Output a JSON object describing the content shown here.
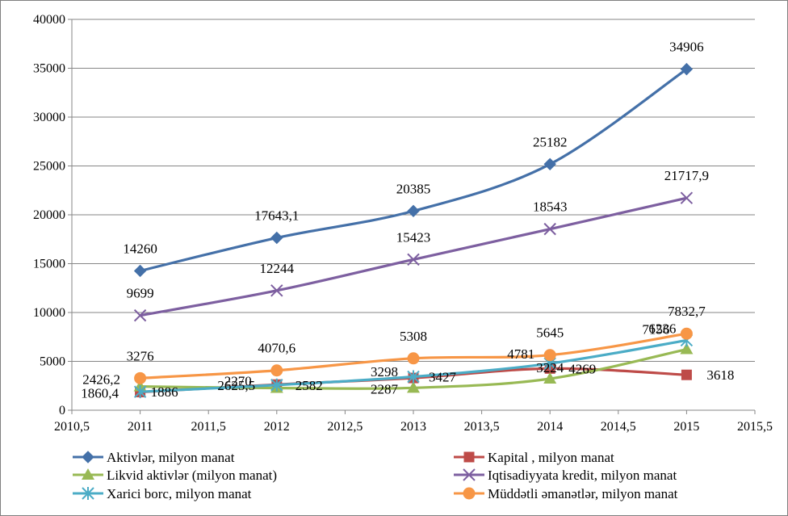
{
  "chart_data": {
    "type": "line",
    "xlim": [
      2010.5,
      2015.5
    ],
    "ylim": [
      0,
      40000
    ],
    "x_ticks": [
      "2010,5",
      "2011",
      "2011,5",
      "2012",
      "2012,5",
      "2013",
      "2013,5",
      "2014",
      "2014,5",
      "2015",
      "2015,5"
    ],
    "y_ticks": [
      "0",
      "5000",
      "10000",
      "15000",
      "20000",
      "25000",
      "30000",
      "35000",
      "40000"
    ],
    "grid": "horizontal",
    "legend_position": "bottom",
    "x": [
      2011,
      2012,
      2013,
      2014,
      2015
    ],
    "series": [
      {
        "name": "Aktivlər, milyon manat",
        "color": "#4470a8",
        "marker": "diamond",
        "values": [
          14260,
          17643.1,
          20385,
          25182,
          34906
        ],
        "labels": [
          "14260",
          "17643,1",
          "20385",
          "25182",
          "34906"
        ]
      },
      {
        "name": "Kapital , milyon manat",
        "color": "#be4b48",
        "marker": "square",
        "values": [
          1860.4,
          2625.5,
          3298,
          4269,
          3618
        ],
        "labels": [
          "1860,4",
          "2625,5",
          "3298",
          "4269",
          "3618"
        ]
      },
      {
        "name": "Likvid aktivlər (milyon manat)",
        "color": "#98b954",
        "marker": "triangle",
        "values": [
          2426.2,
          2270,
          2287,
          3224,
          6236
        ],
        "labels": [
          "2426,2",
          "2270",
          "2287",
          "3224",
          "6236"
        ]
      },
      {
        "name": "Iqtisadiyyata kredit, milyon manat",
        "color": "#7d5fa0",
        "marker": "x",
        "values": [
          9699,
          12244,
          15423,
          18543,
          21717.9
        ],
        "labels": [
          "9699",
          "12244",
          "15423",
          "18543",
          "21717,9"
        ]
      },
      {
        "name": "Xarici  borc, milyon manat",
        "color": "#4bacc6",
        "marker": "star",
        "values": [
          1886,
          2582,
          3427,
          4781,
          7156
        ],
        "labels": [
          "1886",
          "2582",
          "3427",
          "4781",
          "7156"
        ]
      },
      {
        "name": "Müddətli əmanətlər, milyon manat",
        "color": "#f79646",
        "marker": "circle",
        "values": [
          3276,
          4070.6,
          5308,
          5645,
          7832.7
        ],
        "labels": [
          "3276",
          "4070,6",
          "5308",
          "5645",
          "7832,7"
        ]
      }
    ]
  }
}
